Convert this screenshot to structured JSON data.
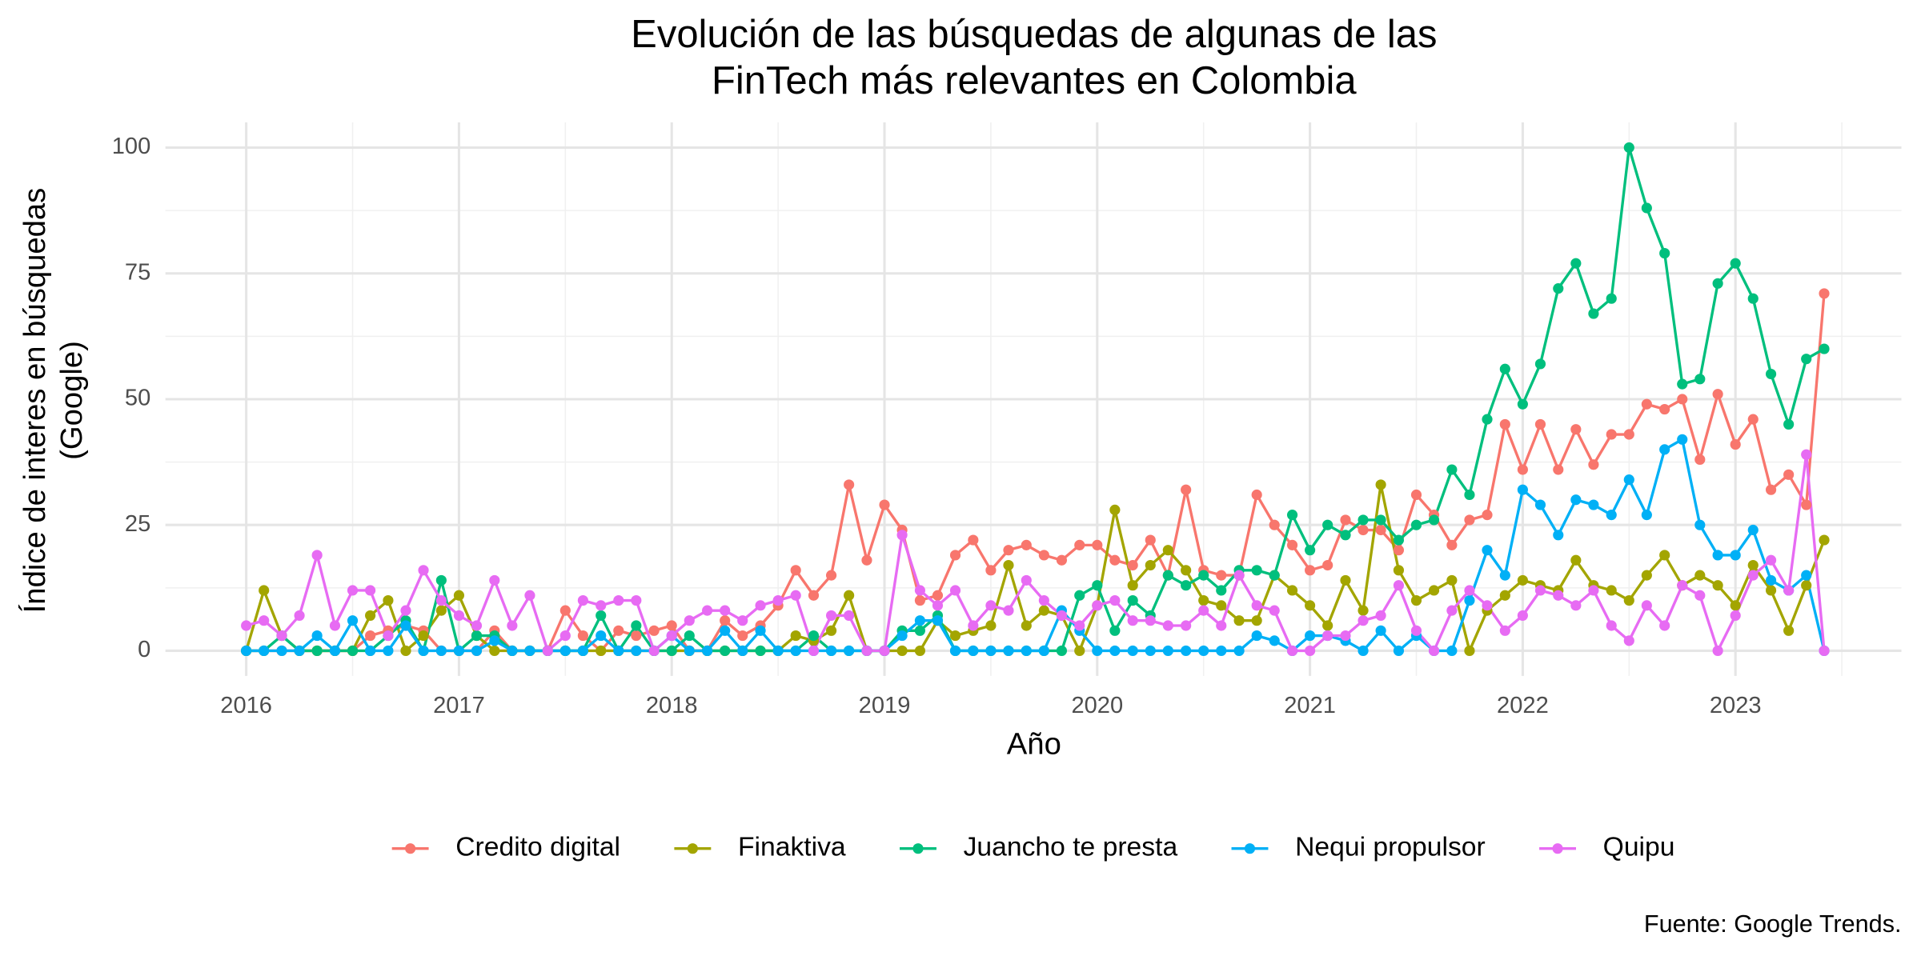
{
  "chart_data": {
    "type": "line",
    "title": [
      "Evolución de las búsquedas de algunas de las",
      "FinTech más relevantes en Colombia"
    ],
    "x_label": "Año",
    "y_label": [
      "Índice de interes en búsquedas",
      "(Google)"
    ],
    "caption": "Fuente: Google Trends.",
    "x": [
      2016,
      2016.083,
      2016.167,
      2016.25,
      2016.333,
      2016.417,
      2016.5,
      2016.583,
      2016.667,
      2016.75,
      2016.833,
      2016.917,
      2017,
      2017.083,
      2017.167,
      2017.25,
      2017.333,
      2017.417,
      2017.5,
      2017.583,
      2017.667,
      2017.75,
      2017.833,
      2017.917,
      2018,
      2018.083,
      2018.167,
      2018.25,
      2018.333,
      2018.417,
      2018.5,
      2018.583,
      2018.667,
      2018.75,
      2018.833,
      2018.917,
      2019,
      2019.083,
      2019.167,
      2019.25,
      2019.333,
      2019.417,
      2019.5,
      2019.583,
      2019.667,
      2019.75,
      2019.833,
      2019.917,
      2020,
      2020.083,
      2020.167,
      2020.25,
      2020.333,
      2020.417,
      2020.5,
      2020.583,
      2020.667,
      2020.75,
      2020.833,
      2020.917,
      2021,
      2021.083,
      2021.167,
      2021.25,
      2021.333,
      2021.417,
      2021.5,
      2021.583,
      2021.667,
      2021.75,
      2021.833,
      2021.917,
      2022,
      2022.083,
      2022.167,
      2022.25,
      2022.333,
      2022.417,
      2022.5,
      2022.583,
      2022.667,
      2022.75,
      2022.833,
      2022.917,
      2023,
      2023.083,
      2023.167,
      2023.25,
      2023.333,
      2023.417
    ],
    "series": [
      {
        "name": "Credito digital",
        "color": "#F8766D",
        "values": [
          0,
          0,
          0,
          0,
          0,
          0,
          0,
          3,
          4,
          5,
          4,
          0,
          0,
          0,
          4,
          0,
          0,
          0,
          8,
          3,
          0,
          4,
          3,
          4,
          5,
          0,
          0,
          6,
          3,
          5,
          9,
          16,
          11,
          15,
          33,
          18,
          29,
          24,
          10,
          11,
          19,
          22,
          16,
          20,
          21,
          19,
          18,
          21,
          21,
          18,
          17,
          22,
          15,
          32,
          16,
          15,
          15,
          31,
          25,
          21,
          16,
          17,
          26,
          24,
          24,
          20,
          31,
          27,
          21,
          26,
          27,
          45,
          36,
          45,
          36,
          44,
          37,
          43,
          43,
          49,
          48,
          50,
          38,
          51,
          41,
          46,
          32,
          35,
          29,
          71
        ]
      },
      {
        "name": "Finaktiva",
        "color": "#A3A500",
        "values": [
          0,
          12,
          3,
          0,
          0,
          0,
          0,
          7,
          10,
          0,
          3,
          8,
          11,
          3,
          0,
          0,
          0,
          0,
          0,
          0,
          0,
          0,
          0,
          0,
          0,
          0,
          0,
          0,
          0,
          0,
          0,
          3,
          2,
          4,
          11,
          0,
          0,
          0,
          0,
          6,
          3,
          4,
          5,
          17,
          5,
          8,
          7,
          0,
          9,
          28,
          13,
          17,
          20,
          16,
          10,
          9,
          6,
          6,
          15,
          12,
          9,
          5,
          14,
          8,
          33,
          16,
          10,
          12,
          14,
          0,
          8,
          11,
          14,
          13,
          12,
          18,
          13,
          12,
          10,
          15,
          19,
          13,
          15,
          13,
          9,
          17,
          12,
          4,
          13,
          22
        ]
      },
      {
        "name": "Juancho te presta",
        "color": "#00BF7D",
        "values": [
          0,
          0,
          3,
          0,
          0,
          0,
          0,
          0,
          3,
          6,
          0,
          14,
          0,
          3,
          3,
          0,
          0,
          0,
          0,
          0,
          7,
          0,
          5,
          0,
          0,
          3,
          0,
          0,
          0,
          0,
          0,
          0,
          3,
          0,
          0,
          0,
          0,
          4,
          4,
          7,
          0,
          0,
          0,
          0,
          0,
          0,
          0,
          11,
          13,
          4,
          10,
          7,
          15,
          13,
          15,
          12,
          16,
          16,
          15,
          27,
          20,
          25,
          23,
          26,
          26,
          22,
          25,
          26,
          36,
          31,
          46,
          56,
          49,
          57,
          72,
          77,
          67,
          70,
          100,
          88,
          79,
          53,
          54,
          73,
          77,
          70,
          55,
          45,
          58,
          60
        ]
      },
      {
        "name": "Nequi propulsor",
        "color": "#00B0F6",
        "values": [
          0,
          0,
          0,
          0,
          3,
          0,
          6,
          0,
          0,
          5,
          0,
          0,
          0,
          0,
          2,
          0,
          0,
          0,
          0,
          0,
          3,
          0,
          0,
          0,
          3,
          0,
          0,
          4,
          0,
          4,
          0,
          0,
          0,
          0,
          0,
          0,
          0,
          3,
          6,
          6,
          0,
          0,
          0,
          0,
          0,
          0,
          8,
          4,
          0,
          0,
          0,
          0,
          0,
          0,
          0,
          0,
          0,
          3,
          2,
          0,
          3,
          3,
          2,
          0,
          4,
          0,
          3,
          0,
          0,
          10,
          20,
          15,
          32,
          29,
          23,
          30,
          29,
          27,
          34,
          27,
          40,
          42,
          25,
          19,
          19,
          24,
          14,
          12,
          15,
          0
        ]
      },
      {
        "name": "Quipu",
        "color": "#E76BF3",
        "values": [
          5,
          6,
          3,
          7,
          19,
          5,
          12,
          12,
          3,
          8,
          16,
          10,
          7,
          5,
          14,
          5,
          11,
          0,
          3,
          10,
          9,
          10,
          10,
          0,
          3,
          6,
          8,
          8,
          6,
          9,
          10,
          11,
          0,
          7,
          7,
          0,
          0,
          23,
          12,
          9,
          12,
          5,
          9,
          8,
          14,
          10,
          7,
          5,
          9,
          10,
          6,
          6,
          5,
          5,
          8,
          5,
          15,
          9,
          8,
          0,
          0,
          3,
          3,
          6,
          7,
          13,
          4,
          0,
          8,
          12,
          9,
          4,
          7,
          12,
          11,
          9,
          12,
          5,
          2,
          9,
          5,
          13,
          11,
          0,
          7,
          15,
          18,
          12,
          39,
          0
        ]
      }
    ],
    "xlim": [
      2015.62,
      2023.78
    ],
    "xticks": [
      2016,
      2017,
      2018,
      2019,
      2020,
      2021,
      2022,
      2023
    ],
    "ylim": [
      -5,
      105
    ],
    "yticks": [
      0,
      25,
      50,
      75,
      100
    ],
    "grid": true,
    "legend": "bottom"
  }
}
